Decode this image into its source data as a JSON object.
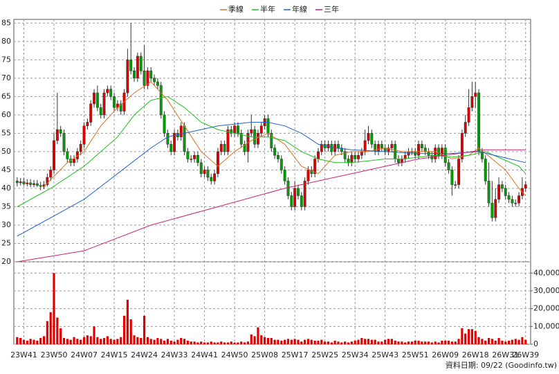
{
  "chart_data": {
    "type": "candlestick",
    "legend_position": "top",
    "grid": true,
    "up_color": "#e00000",
    "down_color": "#00a000",
    "footer": "資料日期: 09/22 (Goodinfo.tw)",
    "xlim": [
      -1,
      153.5
    ],
    "xticks": [
      {
        "value": 2,
        "label": "23W41"
      },
      {
        "value": 11,
        "label": "23W50"
      },
      {
        "value": 20,
        "label": "24W07"
      },
      {
        "value": 29,
        "label": "24W15"
      },
      {
        "value": 38,
        "label": "24W24"
      },
      {
        "value": 47,
        "label": "24W33"
      },
      {
        "value": 56,
        "label": "24W41"
      },
      {
        "value": 65,
        "label": "24W50"
      },
      {
        "value": 74,
        "label": "25W08"
      },
      {
        "value": 83,
        "label": "25W17"
      },
      {
        "value": 92,
        "label": "25W25"
      },
      {
        "value": 101,
        "label": "25W34"
      },
      {
        "value": 110,
        "label": "25W43"
      },
      {
        "value": 119,
        "label": "25W51"
      },
      {
        "value": 128,
        "label": "26W09"
      },
      {
        "value": 137,
        "label": "26W18"
      },
      {
        "value": 146,
        "label": "26W31"
      },
      {
        "value": 152,
        "label": "26W39"
      }
    ],
    "ylim": [
      20,
      86
    ],
    "yticks": [
      20,
      25,
      30,
      35,
      40,
      45,
      50,
      55,
      60,
      65,
      70,
      75,
      80,
      85
    ],
    "open": [
      42,
      41.5,
      41.8,
      41.2,
      41.5,
      41,
      41.3,
      40.8,
      40.5,
      41,
      43,
      45,
      53,
      56,
      55,
      50,
      48,
      47,
      48,
      50,
      52,
      57,
      58,
      63,
      66,
      62,
      60,
      66,
      67,
      65,
      62,
      63,
      61,
      66,
      75,
      72,
      70,
      76,
      72,
      68,
      72,
      70,
      69,
      68,
      60,
      55,
      52,
      50,
      55,
      54,
      57,
      50,
      48,
      48,
      49,
      47,
      44,
      45,
      43,
      42,
      44,
      50,
      52,
      50,
      56,
      55,
      57,
      55,
      52,
      50,
      55,
      56,
      52,
      55,
      57,
      59,
      55,
      51,
      49,
      48,
      45,
      42,
      38,
      35,
      40,
      38,
      35,
      42,
      45,
      44,
      48,
      50,
      52,
      51,
      52,
      50,
      52,
      51,
      50,
      48,
      47,
      49,
      48,
      49,
      50,
      53,
      55,
      52,
      50,
      52,
      51,
      50,
      51,
      52,
      48,
      47,
      48,
      49,
      50,
      50,
      49,
      52,
      51,
      50,
      49,
      48,
      51,
      49,
      51,
      47,
      45,
      41,
      41,
      48,
      55,
      58,
      62,
      65,
      66,
      50,
      48,
      42,
      36,
      32,
      37,
      41,
      40,
      38,
      37,
      36,
      36,
      38,
      40
    ],
    "high": [
      43,
      42.8,
      42.8,
      42.5,
      42.5,
      42.3,
      42.3,
      41.8,
      42,
      44,
      46,
      55,
      66,
      57,
      56,
      51,
      49,
      49,
      51,
      53,
      58,
      59,
      64,
      67,
      68,
      63,
      67,
      68,
      68,
      66,
      64,
      64,
      67,
      78,
      85,
      73,
      77,
      77,
      79,
      73,
      73,
      71,
      70,
      69,
      61,
      56,
      53,
      56,
      56,
      58,
      58,
      51,
      49,
      50,
      50,
      48,
      46,
      46,
      44,
      45,
      51,
      53,
      53,
      57,
      57,
      58,
      58,
      56,
      53,
      56,
      60,
      57,
      56,
      58,
      60,
      60,
      56,
      52,
      50,
      49,
      46,
      43,
      39,
      42,
      41,
      39,
      43,
      46,
      46,
      49,
      51,
      53,
      53,
      53,
      53,
      53,
      53,
      52,
      51,
      49,
      50,
      50,
      50,
      51,
      56,
      57,
      56,
      53,
      53,
      53,
      52,
      52,
      53,
      53,
      49,
      49,
      50,
      51,
      51,
      51,
      53,
      53,
      52,
      51,
      50,
      52,
      52,
      52,
      52,
      48,
      46,
      42,
      49,
      56,
      60,
      67,
      69,
      69,
      67,
      51,
      49,
      47,
      42,
      40,
      43,
      42,
      41,
      39,
      38,
      37,
      39,
      43,
      42
    ],
    "low": [
      40.5,
      40.8,
      40.8,
      40.5,
      40.3,
      40.3,
      40.3,
      39.5,
      39.8,
      40.5,
      42,
      44,
      52,
      54,
      49,
      47,
      46,
      46,
      47,
      49,
      51,
      56,
      57,
      62,
      61,
      59,
      59,
      65,
      64,
      61,
      61,
      60,
      60,
      65,
      71,
      69,
      69,
      71,
      67,
      67,
      69,
      68,
      67,
      59,
      54,
      51,
      49,
      49,
      53,
      53,
      49,
      47,
      47,
      47,
      46,
      43,
      43,
      42,
      41,
      41,
      43,
      49,
      49,
      49,
      54,
      54,
      54,
      51,
      49,
      47,
      54,
      51,
      51,
      54,
      56,
      54,
      50,
      48,
      47,
      44,
      41,
      37,
      34,
      34,
      37,
      34,
      34,
      41,
      43,
      43,
      47,
      49,
      50,
      50,
      49,
      49,
      50,
      49,
      47,
      46,
      46,
      47,
      47,
      48,
      49,
      52,
      51,
      49,
      49,
      50,
      49,
      49,
      50,
      47,
      46,
      46,
      47,
      48,
      49,
      48,
      48,
      50,
      49,
      48,
      47,
      47,
      48,
      48,
      46,
      44,
      38,
      40,
      40,
      47,
      54,
      57,
      61,
      62,
      49,
      47,
      41,
      35,
      31,
      31,
      36,
      39,
      37,
      36,
      35,
      35,
      35,
      37,
      39
    ],
    "close": [
      41.5,
      41.8,
      41.2,
      41.5,
      41,
      41.3,
      40.8,
      40.5,
      41,
      43,
      45,
      53,
      56,
      55,
      50,
      48,
      47,
      48,
      50,
      52,
      57,
      58,
      63,
      66,
      62,
      60,
      66,
      67,
      65,
      62,
      63,
      61,
      66,
      75,
      72,
      70,
      76,
      72,
      68,
      72,
      70,
      69,
      68,
      60,
      55,
      52,
      50,
      55,
      54,
      57,
      50,
      48,
      48,
      49,
      47,
      44,
      45,
      43,
      42,
      44,
      50,
      52,
      50,
      56,
      55,
      57,
      55,
      52,
      50,
      55,
      56,
      52,
      55,
      57,
      59,
      55,
      51,
      49,
      48,
      45,
      42,
      38,
      35,
      40,
      38,
      35,
      42,
      45,
      44,
      48,
      50,
      52,
      51,
      52,
      50,
      52,
      51,
      50,
      48,
      47,
      49,
      48,
      49,
      50,
      53,
      55,
      52,
      50,
      52,
      51,
      50,
      51,
      52,
      48,
      47,
      48,
      49,
      50,
      50,
      49,
      52,
      51,
      50,
      49,
      48,
      51,
      49,
      51,
      47,
      45,
      41,
      41,
      48,
      55,
      58,
      62,
      65,
      66,
      50,
      48,
      42,
      36,
      32,
      37,
      41,
      40,
      38,
      37,
      36,
      36,
      38,
      40,
      41
    ],
    "volume": {
      "color": "#e00000",
      "ylim": [
        0,
        44000
      ],
      "yticks": [
        0,
        {
          "value": 10000,
          "label": "10,000"
        },
        {
          "value": 20000,
          "label": "20,000"
        },
        {
          "value": 30000,
          "label": "30,000"
        },
        {
          "value": 40000,
          "label": "40,000"
        }
      ],
      "values": [
        4000,
        3500,
        2500,
        2000,
        3000,
        2500,
        2000,
        3500,
        4500,
        13000,
        18000,
        40000,
        15000,
        9000,
        3500,
        3000,
        2500,
        4000,
        3000,
        2500,
        4000,
        5000,
        4500,
        10000,
        4000,
        3000,
        3500,
        4500,
        3000,
        2500,
        3000,
        4000,
        16000,
        25000,
        14000,
        5000,
        4000,
        3500,
        16000,
        4000,
        3000,
        2500,
        3500,
        3000,
        2000,
        3000,
        2000,
        1500,
        2500,
        3500,
        3000,
        2000,
        1500,
        1500,
        1000,
        1500,
        1000,
        1000,
        1500,
        1000,
        1000,
        1500,
        1000,
        1000,
        1500,
        1000,
        1000,
        1500,
        1000,
        1500,
        5500,
        4500,
        9500,
        5000,
        4000,
        3500,
        3500,
        2500,
        2500,
        2000,
        2500,
        3000,
        2500,
        3000,
        2500,
        1500,
        2500,
        3000,
        2500,
        2000,
        2000,
        2500,
        1500,
        1500,
        1000,
        2000,
        1500,
        1000,
        1500,
        1000,
        1500,
        2000,
        2500,
        3500,
        3000,
        3000,
        2500,
        2500,
        1500,
        1500,
        2500,
        3000,
        3000,
        2000,
        1500,
        1500,
        1000,
        1500,
        1500,
        2000,
        2000,
        1500,
        1500,
        1500,
        1000,
        1500,
        1000,
        2000,
        2000,
        2000,
        1500,
        1500,
        3000,
        9000,
        6000,
        8500,
        8500,
        7500,
        4000,
        3000,
        2000,
        3500,
        3000,
        2000,
        3500,
        2000,
        1500,
        2000,
        2500,
        3000,
        2500,
        4000,
        2500
      ]
    },
    "lines": [
      {
        "name": "季線",
        "color": "#e07020",
        "x": [
          8,
          15,
          20,
          25,
          30,
          35,
          40,
          45,
          50,
          55,
          60,
          65,
          70,
          75,
          80,
          85,
          90,
          95,
          100,
          105,
          110,
          115,
          120,
          125,
          130,
          135,
          138,
          142,
          146,
          150,
          152
        ],
        "values": [
          40.5,
          47,
          50,
          57,
          62,
          66,
          69,
          64,
          57,
          50,
          46,
          50,
          53,
          55,
          52,
          46,
          44,
          49,
          50,
          50,
          51,
          50,
          50,
          50,
          48,
          49,
          51,
          48,
          45,
          40,
          38
        ]
      },
      {
        "name": "半年",
        "color": "#20c020",
        "x": [
          0,
          10,
          20,
          30,
          35,
          40,
          45,
          50,
          55,
          60,
          65,
          70,
          75,
          80,
          85,
          90,
          95,
          100,
          105,
          110,
          115,
          120,
          125,
          130,
          135,
          140,
          145,
          150,
          152
        ],
        "values": [
          35,
          40,
          46,
          54,
          60,
          64,
          65,
          62,
          58,
          56,
          55,
          54,
          54,
          53,
          50,
          48,
          47,
          47,
          47.5,
          48,
          48,
          48.5,
          49,
          48.5,
          49,
          50,
          48,
          46,
          44
        ]
      },
      {
        "name": "年線",
        "color": "#2060d0",
        "x": [
          0,
          10,
          20,
          30,
          40,
          45,
          50,
          55,
          60,
          70,
          75,
          80,
          85,
          90,
          95,
          100,
          110,
          120,
          130,
          138,
          145,
          152
        ],
        "values": [
          27,
          32,
          37,
          44,
          51,
          54,
          55,
          56,
          57,
          58,
          58,
          57,
          55,
          52,
          51,
          50.5,
          50,
          49.5,
          49.5,
          50,
          48.5,
          47
        ]
      },
      {
        "name": "三年",
        "color": "#d02070",
        "x": [
          0,
          20,
          40,
          60,
          80,
          100,
          120,
          140,
          152
        ],
        "values": [
          20,
          23,
          30,
          35,
          40,
          44,
          48,
          50.5,
          50.5
        ]
      }
    ]
  }
}
